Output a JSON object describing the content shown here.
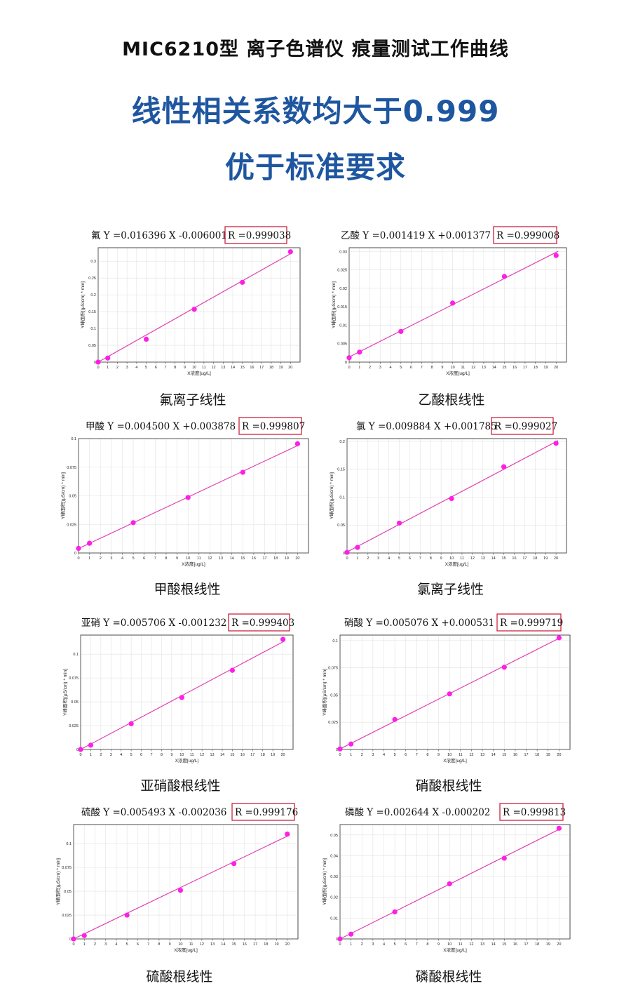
{
  "page": {
    "title": "MIC6210型 离子色谱仪   痕量测试工作曲线",
    "headline_1": "线性相关系数均大于0.999",
    "headline_2": "优于标准要求"
  },
  "style": {
    "line_color": "#e040b0",
    "point_color": "#ff1ee6",
    "headline_color": "#1e56a0",
    "box_color": "#c8102e"
  },
  "chart_data": [
    {
      "type": "scatter",
      "caption": "氟离子线性",
      "eq_main": "氟 Y =0.016396 X  -0.006001",
      "eq_r": "R =0.999038",
      "xlabel": "X浓度[ug/L]",
      "ylabel": "Y峰面积[(μS/cm) * min]",
      "xlim": [
        0,
        21
      ],
      "ylim": [
        0,
        0.34
      ],
      "yticks": [
        "0",
        "0.05",
        "0.1",
        "0.15",
        "0.2",
        "0.25",
        "0.3"
      ],
      "x": [
        0,
        1,
        5,
        10,
        15,
        20
      ],
      "y": [
        0,
        0.012,
        0.068,
        0.157,
        0.237,
        0.328
      ],
      "fit": {
        "slope": 0.016396,
        "intercept": -0.006001
      }
    },
    {
      "type": "scatter",
      "caption": "乙酸根线性",
      "eq_main": "乙酸 Y =0.001419 X  +0.001377",
      "eq_r": "R =0.999008",
      "xlabel": "X浓度[ug/L]",
      "ylabel": "Y峰面积[(μS/cm) * min]",
      "xlim": [
        0,
        21
      ],
      "ylim": [
        0,
        0.031
      ],
      "yticks": [
        "0",
        "0.005",
        "0.01",
        "0.015",
        "0.02",
        "0.025",
        "0.03"
      ],
      "x": [
        0,
        1,
        5,
        10,
        15,
        20
      ],
      "y": [
        0.0012,
        0.0027,
        0.0083,
        0.016,
        0.0232,
        0.0289
      ],
      "fit": {
        "slope": 0.001419,
        "intercept": 0.001377
      }
    },
    {
      "type": "scatter",
      "caption": "甲酸根线性",
      "eq_main": "甲酸 Y =0.004500 X  +0.003878",
      "eq_r": "R =0.999807",
      "xlabel": "X浓度[ug/L]",
      "ylabel": "Y峰面积[(μS/cm) * min]",
      "xlim": [
        0,
        21
      ],
      "ylim": [
        0,
        0.1
      ],
      "yticks": [
        "0",
        "0.025",
        "0.05",
        "0.075",
        "0.1"
      ],
      "x": [
        0,
        1,
        5,
        10,
        15,
        20
      ],
      "y": [
        0.004,
        0.0085,
        0.0265,
        0.0485,
        0.0705,
        0.0955
      ],
      "fit": {
        "slope": 0.0045,
        "intercept": 0.003878
      }
    },
    {
      "type": "scatter",
      "caption": "氯离子线性",
      "eq_main": "氯 Y =0.009884 X  +0.001785",
      "eq_r": "R =0.999027",
      "xlabel": "X浓度[ug/L]",
      "ylabel": "Y峰面积[(μS/cm) * min]",
      "xlim": [
        0,
        21
      ],
      "ylim": [
        0,
        0.205
      ],
      "yticks": [
        "0",
        "0.05",
        "0.1",
        "0.15",
        "0.2"
      ],
      "x": [
        0,
        1,
        5,
        10,
        15,
        20
      ],
      "y": [
        0.001,
        0.01,
        0.0535,
        0.0975,
        0.1545,
        0.1965
      ],
      "fit": {
        "slope": 0.009884,
        "intercept": 0.001785
      }
    },
    {
      "type": "scatter",
      "caption": "亚硝酸根线性",
      "eq_main": "亚硝 Y =0.005706 X  -0.001232",
      "eq_r": "R =0.999403",
      "xlabel": "X浓度[ug/L]",
      "ylabel": "Y峰面积[(μS/cm) * min]",
      "xlim": [
        0,
        21
      ],
      "ylim": [
        0,
        0.12
      ],
      "yticks": [
        "0",
        "0.025",
        "0.05",
        "0.075",
        "0.1"
      ],
      "x": [
        0,
        1,
        5,
        10,
        15,
        20
      ],
      "y": [
        0,
        0.0045,
        0.027,
        0.0545,
        0.083,
        0.1155
      ],
      "fit": {
        "slope": 0.005706,
        "intercept": -0.001232
      }
    },
    {
      "type": "scatter",
      "caption": "硝酸根线性",
      "eq_main": "硝酸 Y =0.005076 X  +0.000531",
      "eq_r": "R =0.999719",
      "xlabel": "X浓度[ug/L]",
      "ylabel": "Y峰面积[(μS/cm) * min]",
      "xlim": [
        0,
        21
      ],
      "ylim": [
        0,
        0.105
      ],
      "yticks": [
        "0",
        "0.025",
        "0.05",
        "0.075",
        "0.1"
      ],
      "x": [
        0,
        1,
        5,
        10,
        15,
        20
      ],
      "y": [
        0.0005,
        0.005,
        0.0275,
        0.051,
        0.0755,
        0.1025
      ],
      "fit": {
        "slope": 0.005076,
        "intercept": 0.000531
      }
    },
    {
      "type": "scatter",
      "caption": "硫酸根线性",
      "eq_main": "硫酸 Y =0.005493 X  -0.002036",
      "eq_r": "R =0.999176",
      "xlabel": "X浓度[ug/L]",
      "ylabel": "Y峰面积[(μS/cm) * min]",
      "xlim": [
        0,
        21
      ],
      "ylim": [
        0,
        0.12
      ],
      "yticks": [
        "0",
        "0.025",
        "0.05",
        "0.075",
        "0.1"
      ],
      "x": [
        0,
        1,
        5,
        10,
        15,
        20
      ],
      "y": [
        0,
        0.0035,
        0.025,
        0.051,
        0.079,
        0.11
      ],
      "fit": {
        "slope": 0.005493,
        "intercept": -0.002036
      }
    },
    {
      "type": "scatter",
      "caption": "磷酸根线性",
      "eq_main": "磷酸 Y =0.002644 X  -0.000202",
      "eq_r": "R =0.999813",
      "xlabel": "X浓度[ug/L]",
      "ylabel": "Y峰面积[(μS/cm) * min]",
      "xlim": [
        0,
        21
      ],
      "ylim": [
        0,
        0.055
      ],
      "yticks": [
        "0",
        "0.01",
        "0.02",
        "0.03",
        "0.04",
        "0.05"
      ],
      "x": [
        0,
        1,
        5,
        10,
        15,
        20
      ],
      "y": [
        0,
        0.0023,
        0.013,
        0.0265,
        0.0388,
        0.0532
      ],
      "fit": {
        "slope": 0.002644,
        "intercept": -0.000202
      }
    }
  ]
}
